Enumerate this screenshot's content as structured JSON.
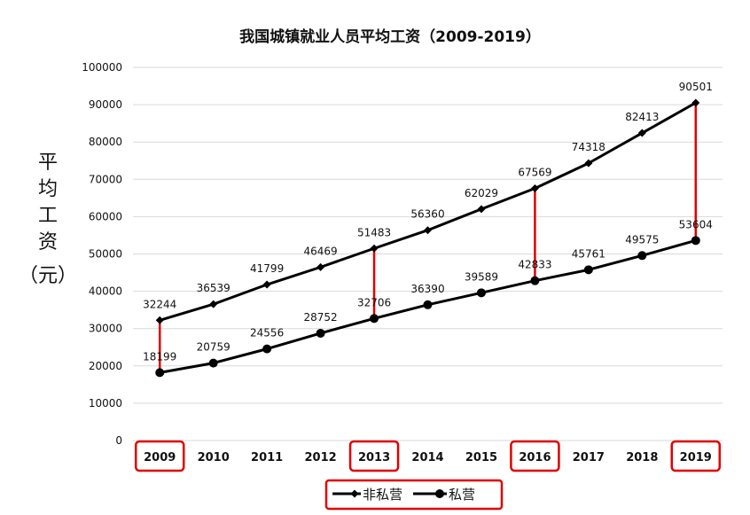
{
  "chart_data": {
    "type": "line",
    "title": "我国城镇就业人员平均工资（2009-2019）",
    "ylabel": [
      "平",
      "均",
      "工",
      "资",
      "（元）"
    ],
    "xlabel": "",
    "categories": [
      "2009",
      "2010",
      "2011",
      "2012",
      "2013",
      "2014",
      "2015",
      "2016",
      "2017",
      "2018",
      "2019"
    ],
    "ylim": [
      0,
      100000
    ],
    "yticks": [
      "0",
      "10000",
      "20000",
      "30000",
      "40000",
      "50000",
      "60000",
      "70000",
      "80000",
      "90000",
      "100000"
    ],
    "grid": true,
    "legend_position": "bottom",
    "series": [
      {
        "name": "非私营",
        "marker": "diamond",
        "values": [
          32244,
          36539,
          41799,
          46469,
          51483,
          56360,
          62029,
          67569,
          74318,
          82413,
          90501
        ],
        "labels": [
          "32244",
          "36539",
          "41799",
          "46469",
          "51483",
          "56360",
          "62029",
          "67569",
          "74318",
          "82413",
          "90501"
        ]
      },
      {
        "name": "私营",
        "marker": "circle",
        "values": [
          18199,
          20759,
          24556,
          28752,
          32706,
          36390,
          39589,
          42833,
          45761,
          49575,
          53604
        ],
        "labels": [
          "18199",
          "20759",
          "24556",
          "28752",
          "32706",
          "36390",
          "39589",
          "42833",
          "45761",
          "49575",
          "53604"
        ]
      }
    ],
    "highlighted_categories": [
      "2009",
      "2013",
      "2016",
      "2019"
    ],
    "colors": {
      "line": "#000000",
      "highlight": "#e00000",
      "grid": "#d9d9d9"
    }
  }
}
